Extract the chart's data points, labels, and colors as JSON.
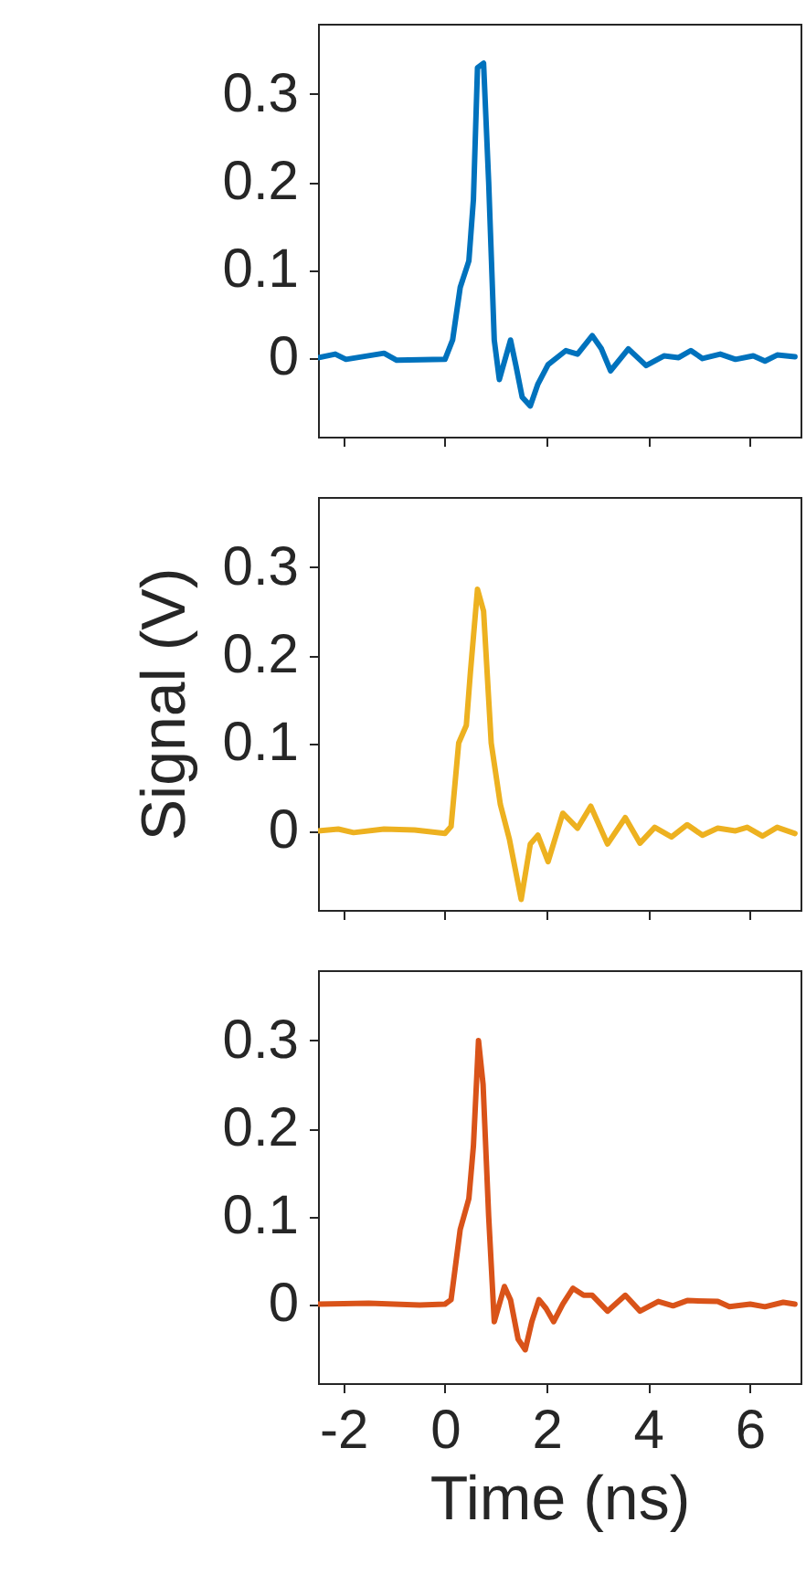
{
  "chart_data": [
    {
      "type": "line",
      "tick_labels": "y",
      "grid": false,
      "xlim": [
        -2.5,
        7
      ],
      "ylim": [
        -0.09,
        0.38
      ],
      "xticks": [
        -2,
        0,
        2,
        4,
        6
      ],
      "yticks": [
        0,
        0.1,
        0.2,
        0.3
      ],
      "x": [
        -2.5,
        -2.16,
        -1.95,
        -1.2,
        -0.95,
        0,
        0.15,
        0.3,
        0.47,
        0.56,
        0.64,
        0.76,
        0.86,
        0.97,
        1.07,
        1.29,
        1.4,
        1.52,
        1.68,
        1.83,
        2.03,
        2.38,
        2.61,
        2.9,
        3.08,
        3.26,
        3.61,
        3.96,
        4.31,
        4.6,
        4.84,
        5.07,
        5.42,
        5.72,
        6.07,
        6.3,
        6.54,
        6.89
      ],
      "series": [
        {
          "color": "#0072bd",
          "values": [
            0,
            0.004,
            -0.002,
            0.005,
            -0.003,
            -0.002,
            0.02,
            0.08,
            0.11,
            0.18,
            0.33,
            0.335,
            0.2,
            0.02,
            -0.025,
            0.02,
            -0.01,
            -0.045,
            -0.055,
            -0.03,
            -0.008,
            0.008,
            0.004,
            0.025,
            0.01,
            -0.015,
            0.01,
            -0.009,
            0.002,
            0,
            0.008,
            -0.001,
            0.004,
            -0.002,
            0.002,
            -0.004,
            0.003,
            0.001
          ]
        }
      ]
    },
    {
      "type": "line",
      "tick_labels": "y",
      "grid": false,
      "xlim": [
        -2.5,
        7
      ],
      "ylim": [
        -0.09,
        0.38
      ],
      "xticks": [
        -2,
        0,
        2,
        4,
        6
      ],
      "yticks": [
        0,
        0.1,
        0.2,
        0.3
      ],
      "ylabel": "Signal (V)",
      "x": [
        -2.5,
        -2.1,
        -1.8,
        -1.2,
        -0.6,
        0,
        0.12,
        0.27,
        0.42,
        0.5,
        0.64,
        0.76,
        0.91,
        1.09,
        1.27,
        1.5,
        1.68,
        1.83,
        2.03,
        2.32,
        2.61,
        2.87,
        3.2,
        3.55,
        3.84,
        4.13,
        4.46,
        4.77,
        5.07,
        5.37,
        5.72,
        5.95,
        6.25,
        6.54,
        6.89
      ],
      "series": [
        {
          "color": "#edb120",
          "values": [
            0,
            0.002,
            -0.002,
            0.002,
            0.001,
            -0.003,
            0.005,
            0.1,
            0.12,
            0.18,
            0.275,
            0.25,
            0.1,
            0.03,
            -0.01,
            -0.078,
            -0.015,
            -0.005,
            -0.035,
            0.02,
            0.003,
            0.028,
            -0.015,
            0.015,
            -0.014,
            0.004,
            -0.007,
            0.007,
            -0.005,
            0.003,
            0,
            0.004,
            -0.006,
            0.004,
            -0.003
          ]
        }
      ]
    },
    {
      "type": "line",
      "grid": false,
      "xlim": [
        -2.5,
        7
      ],
      "ylim": [
        -0.09,
        0.38
      ],
      "xticks": [
        -2,
        0,
        2,
        4,
        6
      ],
      "yticks": [
        0,
        0.1,
        0.2,
        0.3
      ],
      "xlabel": "Time (ns)",
      "x": [
        -2.5,
        -1.5,
        -0.5,
        0,
        0.12,
        0.3,
        0.47,
        0.56,
        0.66,
        0.75,
        0.86,
        0.97,
        1.17,
        1.29,
        1.44,
        1.58,
        1.71,
        1.85,
        1.99,
        2.14,
        2.32,
        2.52,
        2.73,
        2.9,
        3.2,
        3.55,
        3.84,
        4.2,
        4.49,
        4.77,
        5.37,
        5.6,
        6.01,
        6.3,
        6.66,
        6.89
      ],
      "series": [
        {
          "color": "#d95319",
          "values": [
            0,
            0.001,
            -0.001,
            0,
            0.005,
            0.085,
            0.12,
            0.18,
            0.3,
            0.25,
            0.1,
            -0.02,
            0.02,
            0.005,
            -0.04,
            -0.052,
            -0.02,
            0.005,
            -0.005,
            -0.02,
            0,
            0.018,
            0.01,
            0.01,
            -0.008,
            0.01,
            -0.008,
            0.003,
            -0.002,
            0.004,
            0.003,
            -0.003,
            0,
            -0.003,
            0.002,
            0
          ]
        }
      ]
    }
  ]
}
